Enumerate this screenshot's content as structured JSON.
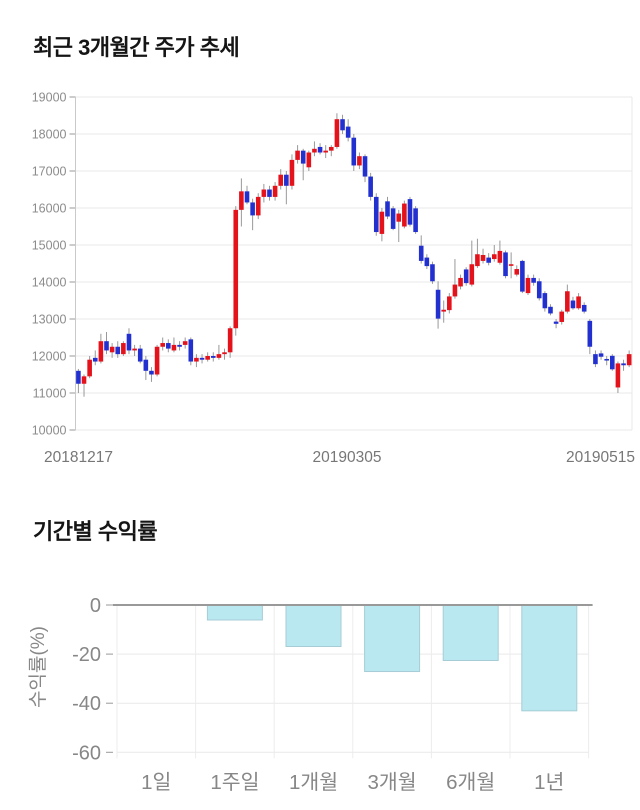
{
  "chart_data": [
    {
      "type": "candlestick",
      "title": "최근 3개월간 주가 추세",
      "ylim": [
        10000,
        19000
      ],
      "yticks": [
        19000,
        18000,
        17000,
        16000,
        15000,
        14000,
        13000,
        12000,
        11000,
        10000
      ],
      "xticks": [
        "20181217",
        "20190305",
        "20190515"
      ],
      "grid": "horizontal",
      "colors": {
        "up": "#e4121b",
        "down": "#2230d0",
        "wick": "#999999",
        "grid": "#e8e8e8",
        "axis": "#c9c9c9",
        "tick": "#999999",
        "ytick_text": "#8c8c8c",
        "xtick_text": "#777777"
      },
      "candles_ohlc": [
        [
          11600,
          11650,
          11000,
          11250
        ],
        [
          11250,
          11500,
          10900,
          11450
        ],
        [
          11450,
          12000,
          11400,
          11900
        ],
        [
          11950,
          12150,
          11750,
          11850
        ],
        [
          11850,
          12600,
          11800,
          12400
        ],
        [
          12400,
          12650,
          12050,
          12150
        ],
        [
          12100,
          12350,
          11950,
          12250
        ],
        [
          12250,
          12400,
          11950,
          12050
        ],
        [
          12050,
          12400,
          12000,
          12350
        ],
        [
          12600,
          12750,
          12050,
          12150
        ],
        [
          12150,
          12300,
          12000,
          12200
        ],
        [
          12200,
          12300,
          11800,
          11850
        ],
        [
          11900,
          12000,
          11350,
          11600
        ],
        [
          11600,
          11700,
          11300,
          11500
        ],
        [
          11500,
          12300,
          11450,
          12250
        ],
        [
          12250,
          12500,
          12150,
          12350
        ],
        [
          12350,
          12450,
          12100,
          12200
        ],
        [
          12150,
          12500,
          12100,
          12300
        ],
        [
          12300,
          12400,
          12150,
          12250
        ],
        [
          12300,
          12500,
          12200,
          12400
        ],
        [
          12450,
          12500,
          11750,
          11850
        ],
        [
          11850,
          12050,
          11700,
          11950
        ],
        [
          11950,
          12050,
          11800,
          11900
        ],
        [
          11900,
          12100,
          11850,
          12000
        ],
        [
          12000,
          12100,
          11850,
          11950
        ],
        [
          11950,
          12300,
          11900,
          12050
        ],
        [
          12050,
          12200,
          11900,
          12100
        ],
        [
          12100,
          12800,
          11950,
          12750
        ],
        [
          12750,
          16050,
          12550,
          15950
        ],
        [
          15950,
          16800,
          15500,
          16450
        ],
        [
          16450,
          16600,
          16100,
          16150
        ],
        [
          16150,
          16250,
          15400,
          15800
        ],
        [
          15800,
          16400,
          15700,
          16300
        ],
        [
          16300,
          16650,
          16150,
          16500
        ],
        [
          16500,
          16600,
          16200,
          16300
        ],
        [
          16300,
          16700,
          16200,
          16600
        ],
        [
          16600,
          17050,
          16500,
          16900
        ],
        [
          16900,
          17000,
          16100,
          16600
        ],
        [
          16600,
          17450,
          16500,
          17300
        ],
        [
          17300,
          17700,
          17200,
          17550
        ],
        [
          17550,
          17600,
          16750,
          17200
        ],
        [
          17100,
          17550,
          17000,
          17500
        ],
        [
          17500,
          17800,
          17400,
          17600
        ],
        [
          17650,
          17750,
          17450,
          17500
        ],
        [
          17500,
          17700,
          17350,
          17550
        ],
        [
          17550,
          17700,
          17400,
          17650
        ],
        [
          17650,
          18560,
          17600,
          18400
        ],
        [
          18400,
          18520,
          18000,
          18100
        ],
        [
          18200,
          18400,
          17800,
          17900
        ],
        [
          17900,
          18000,
          17000,
          17150
        ],
        [
          17150,
          17500,
          17050,
          17400
        ],
        [
          17400,
          17450,
          16700,
          16850
        ],
        [
          16850,
          16950,
          16200,
          16300
        ],
        [
          16300,
          16400,
          15250,
          15350
        ],
        [
          15300,
          16000,
          15100,
          15900
        ],
        [
          16180,
          16300,
          15700,
          15770
        ],
        [
          15990,
          16050,
          15400,
          15435
        ],
        [
          15630,
          15950,
          15080,
          15850
        ],
        [
          15500,
          16200,
          15450,
          16120
        ],
        [
          16240,
          16300,
          15500,
          15550
        ],
        [
          15990,
          16050,
          15300,
          15350
        ],
        [
          14980,
          15260,
          14500,
          14570
        ],
        [
          14660,
          14750,
          14350,
          14430
        ],
        [
          14480,
          14550,
          13950,
          14020
        ],
        [
          13790,
          14020,
          12740,
          13010
        ],
        [
          13200,
          13500,
          12900,
          13250
        ],
        [
          13240,
          13700,
          13150,
          13610
        ],
        [
          13610,
          14620,
          13550,
          13930
        ],
        [
          13880,
          14200,
          13800,
          14110
        ],
        [
          14340,
          14400,
          13900,
          13970
        ],
        [
          13930,
          15120,
          13880,
          14480
        ],
        [
          14430,
          15170,
          14380,
          14750
        ],
        [
          14570,
          14900,
          14500,
          14730
        ],
        [
          14660,
          14780,
          14450,
          14520
        ],
        [
          14620,
          15000,
          14550,
          14750
        ],
        [
          14520,
          15120,
          14470,
          14840
        ],
        [
          14800,
          14850,
          14100,
          14160
        ],
        [
          14450,
          14800,
          14100,
          14480
        ],
        [
          14200,
          14450,
          14150,
          14350
        ],
        [
          14570,
          14600,
          13700,
          13740
        ],
        [
          13700,
          14200,
          13650,
          14110
        ],
        [
          14110,
          14200,
          13900,
          13980
        ],
        [
          14020,
          14100,
          13500,
          13560
        ],
        [
          13700,
          13750,
          13200,
          13290
        ],
        [
          13330,
          13400,
          13100,
          13150
        ],
        [
          12930,
          13000,
          12750,
          12870
        ],
        [
          12920,
          13250,
          12850,
          13200
        ],
        [
          13200,
          13930,
          13150,
          13750
        ],
        [
          13500,
          13600,
          13250,
          13290
        ],
        [
          13290,
          13700,
          13250,
          13610
        ],
        [
          13380,
          13450,
          13150,
          13200
        ],
        [
          12950,
          13000,
          12050,
          12250
        ],
        [
          12050,
          12150,
          11700,
          11780
        ],
        [
          12070,
          12150,
          11900,
          11980
        ],
        [
          11920,
          12000,
          11750,
          11880
        ],
        [
          12005,
          12050,
          11600,
          11640
        ],
        [
          11150,
          11850,
          11000,
          11800
        ],
        [
          11800,
          11900,
          11600,
          11750
        ],
        [
          11750,
          12150,
          11700,
          12050
        ]
      ]
    },
    {
      "type": "bar",
      "title": "기간별 수익률",
      "ylabel": "수익률(%)",
      "ylim": [
        -60,
        0
      ],
      "yticks": [
        0,
        -20,
        -40,
        -60
      ],
      "categories": [
        "1일",
        "1주일",
        "1개월",
        "3개월",
        "6개월",
        "1년"
      ],
      "values": [
        0.0,
        -5.9,
        -16.7,
        -26.9,
        -22.4,
        -42.9
      ],
      "grid": "on",
      "legend": "none",
      "colors": {
        "bar_fill": "#b9e8f1",
        "bar_border": "#a6cdd6",
        "zero_line": "#999999",
        "grid": "#e9e9e9",
        "text": "#878787"
      }
    }
  ]
}
